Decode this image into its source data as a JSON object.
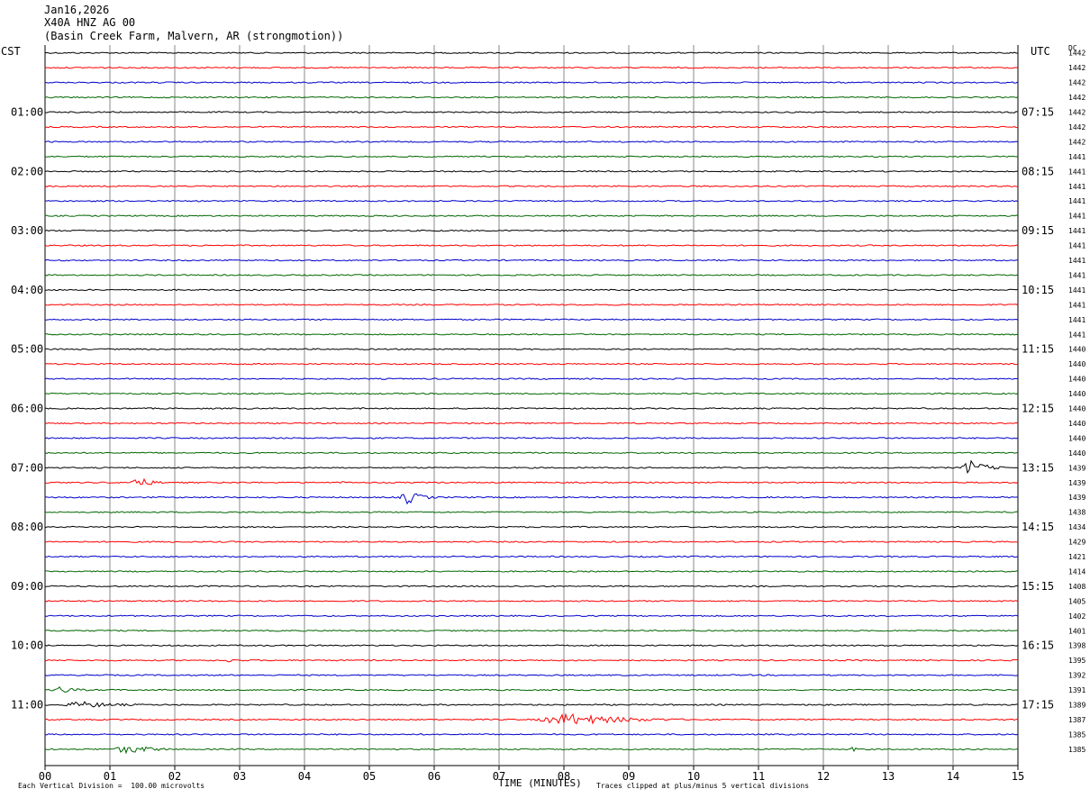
{
  "header": {
    "date": "Jan16,2026",
    "station": "X40A HNZ AG 00",
    "location": "(Basin Creek Farm, Malvern, AR (strongmotion))"
  },
  "left_timezone": "CST",
  "right_timezone": "UTC",
  "dc_label": "DC",
  "chart_data": {
    "type": "line",
    "title": "",
    "xlabel": "TIME (MINUTES)",
    "xlim": [
      0,
      15
    ],
    "x_ticks": [
      "00",
      "01",
      "02",
      "03",
      "04",
      "05",
      "06",
      "07",
      "08",
      "09",
      "10",
      "11",
      "12",
      "13",
      "14",
      "15"
    ],
    "trace_count": 48,
    "trace_colors": [
      "#000000",
      "#ff0000",
      "#0000cc",
      "#006600"
    ],
    "left_time_labels": [
      {
        "row": 4,
        "label": "01:00"
      },
      {
        "row": 8,
        "label": "02:00"
      },
      {
        "row": 12,
        "label": "03:00"
      },
      {
        "row": 16,
        "label": "04:00"
      },
      {
        "row": 20,
        "label": "05:00"
      },
      {
        "row": 24,
        "label": "06:00"
      },
      {
        "row": 28,
        "label": "07:00"
      },
      {
        "row": 32,
        "label": "08:00"
      },
      {
        "row": 36,
        "label": "09:00"
      },
      {
        "row": 40,
        "label": "10:00"
      },
      {
        "row": 44,
        "label": "11:00"
      }
    ],
    "right_time_labels": [
      {
        "row": 4,
        "label": "07:15"
      },
      {
        "row": 8,
        "label": "08:15"
      },
      {
        "row": 12,
        "label": "09:15"
      },
      {
        "row": 16,
        "label": "10:15"
      },
      {
        "row": 20,
        "label": "11:15"
      },
      {
        "row": 24,
        "label": "12:15"
      },
      {
        "row": 28,
        "label": "13:15"
      },
      {
        "row": 32,
        "label": "14:15"
      },
      {
        "row": 36,
        "label": "15:15"
      },
      {
        "row": 40,
        "label": "16:15"
      },
      {
        "row": 44,
        "label": "17:15"
      }
    ],
    "dc_values": [
      "1442",
      "1442",
      "1442",
      "1442",
      "1442",
      "1442",
      "1442",
      "1441",
      "1441",
      "1441",
      "1441",
      "1441",
      "1441",
      "1441",
      "1441",
      "1441",
      "1441",
      "1441",
      "1441",
      "1441",
      "1440",
      "1440",
      "1440",
      "1440",
      "1440",
      "1440",
      "1440",
      "1440",
      "1439",
      "1439",
      "1439",
      "1438",
      "1434",
      "1429",
      "1421",
      "1414",
      "1408",
      "1405",
      "1402",
      "1401",
      "1398",
      "1395",
      "1392",
      "1391",
      "1389",
      "1387",
      "1385",
      "1385"
    ],
    "events": [
      {
        "row": 28,
        "start": 14.1,
        "end": 14.85,
        "amplitude": 9
      },
      {
        "row": 29,
        "start": 1.3,
        "end": 1.9,
        "amplitude": 7
      },
      {
        "row": 29,
        "start": 4.5,
        "end": 4.8,
        "amplitude": 2
      },
      {
        "row": 30,
        "start": 5.45,
        "end": 6.1,
        "amplitude": 8
      },
      {
        "row": 41,
        "start": 2.7,
        "end": 3.4,
        "amplitude": 2
      },
      {
        "row": 43,
        "start": 0.05,
        "end": 0.9,
        "amplitude": 4
      },
      {
        "row": 44,
        "start": 0.2,
        "end": 1.9,
        "amplitude": 4
      },
      {
        "row": 45,
        "start": 7.5,
        "end": 10.2,
        "amplitude": 7
      },
      {
        "row": 47,
        "start": 1.0,
        "end": 2.3,
        "amplitude": 5
      },
      {
        "row": 47,
        "start": 12.4,
        "end": 12.7,
        "amplitude": 3
      }
    ]
  },
  "footer": {
    "left_note": "Each Vertical Division =  100.00 microvolts",
    "right_note": "Traces clipped at plus/minus 5 vertical divisions"
  }
}
